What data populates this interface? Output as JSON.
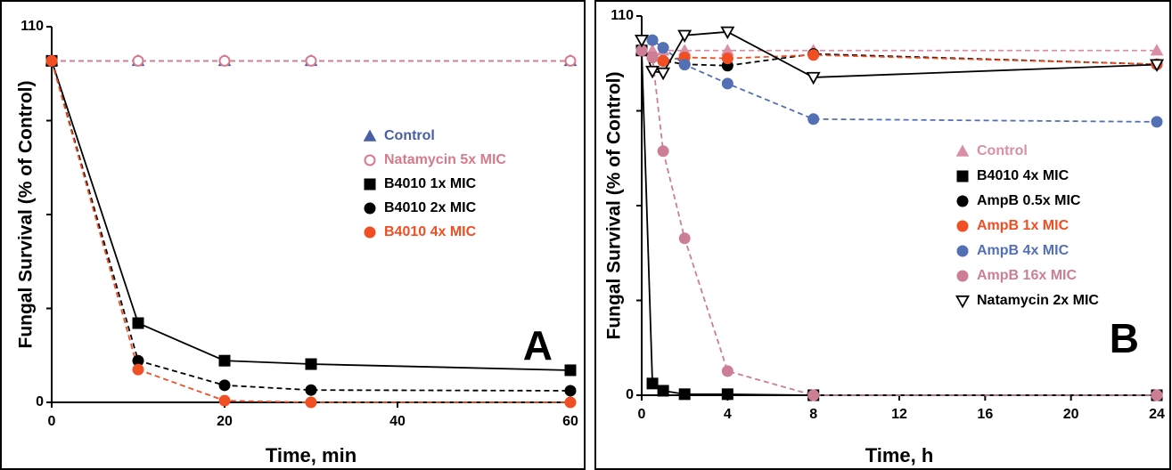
{
  "chart_data": [
    {
      "type": "line",
      "panel_label": "A",
      "x_label": "Time, min",
      "y_label": "Fungal Survival (% of Control)",
      "x": [
        0,
        10,
        20,
        30,
        60
      ],
      "xlim": [
        0,
        60
      ],
      "xticks": [
        0,
        20,
        40,
        60
      ],
      "ylim": [
        0,
        110
      ],
      "yticks": [
        0,
        110
      ],
      "yminor": [
        27.5,
        55,
        82.5
      ],
      "series": [
        {
          "name": "Control",
          "color": "#4a5ea8",
          "marker": "triangle",
          "line": "dashed",
          "values": [
            100,
            100,
            100,
            100,
            100
          ]
        },
        {
          "name": "Natamycin 5x MIC",
          "color": "#d77a8a",
          "marker": "open-circle",
          "line": "dashed",
          "values": [
            100,
            100,
            100,
            100,
            100
          ]
        },
        {
          "name": "B4010 1x MIC",
          "color": "#000000",
          "marker": "square",
          "line": "solid",
          "values": [
            100,
            23.2,
            12.2,
            11.2,
            9.4
          ]
        },
        {
          "name": "B4010 2x MIC",
          "color": "#000000",
          "marker": "circle",
          "line": "dashed",
          "values": [
            100,
            12.2,
            5,
            3.6,
            3.4
          ]
        },
        {
          "name": "B4010 4x MIC",
          "color": "#f04e23",
          "marker": "circle",
          "line": "dashed",
          "values": [
            100,
            9.6,
            0.5,
            0,
            0
          ]
        }
      ]
    },
    {
      "type": "line",
      "panel_label": "B",
      "x_label": "Time, h",
      "y_label": "Fungal Survival (% of Control)",
      "x": [
        0,
        0.5,
        1,
        2,
        4,
        8,
        24
      ],
      "xlim": [
        0,
        24
      ],
      "xticks": [
        0,
        4,
        8,
        12,
        16,
        20,
        24
      ],
      "ylim": [
        0,
        110
      ],
      "yticks": [
        0,
        110
      ],
      "yminor": [
        27.5,
        55,
        82.5
      ],
      "series": [
        {
          "name": "Control",
          "color": "#d98fa6",
          "marker": "triangle",
          "line": "dashed",
          "values": [
            100,
            100,
            100,
            100,
            100,
            100,
            100
          ]
        },
        {
          "name": "B4010 4x MIC",
          "color": "#000000",
          "marker": "square",
          "line": "solid",
          "values": [
            100,
            3.4,
            1.3,
            0.3,
            0.3,
            0,
            0
          ]
        },
        {
          "name": "AmpB 0.5x MIC",
          "color": "#000000",
          "marker": "circle",
          "line": "dashed",
          "values": [
            100,
            98,
            97,
            96,
            95.6,
            99,
            96
          ]
        },
        {
          "name": "AmpB 1x MIC",
          "color": "#f04e23",
          "marker": "circle",
          "line": "dashed",
          "values": [
            100,
            98,
            97,
            98,
            97.7,
            98.7,
            96
          ]
        },
        {
          "name": "AmpB 4x MIC",
          "color": "#5470b5",
          "marker": "circle",
          "line": "dashed",
          "values": [
            100,
            103,
            100.8,
            95.9,
            90.4,
            80.1,
            79.3
          ]
        },
        {
          "name": "AmpB 16x MIC",
          "color": "#cc7f94",
          "marker": "circle",
          "line": "dashed",
          "values": [
            100,
            98,
            70.8,
            45.5,
            7,
            0,
            0
          ]
        },
        {
          "name": "Natamycin 2x MIC",
          "color": "#000000",
          "marker": "open-triangle-down",
          "line": "solid",
          "values": [
            103,
            94,
            93.5,
            104.4,
            105.4,
            92.2,
            95.9
          ]
        }
      ]
    }
  ]
}
